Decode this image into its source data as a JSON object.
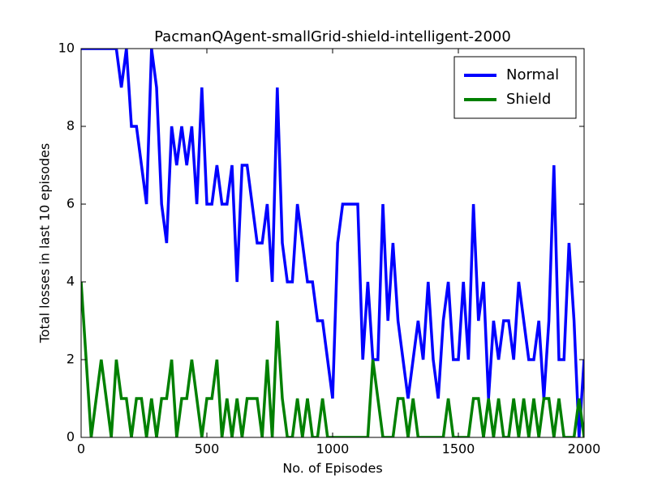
{
  "chart_data": {
    "type": "line",
    "title": "PacmanQAgent-smallGrid-shield-intelligent-2000",
    "x_label": "No. of Episodes",
    "y_label": "Total losses in last 10 episodes",
    "x": [
      0,
      20,
      40,
      60,
      80,
      100,
      120,
      140,
      160,
      180,
      200,
      220,
      240,
      260,
      280,
      300,
      320,
      340,
      360,
      380,
      400,
      420,
      440,
      460,
      480,
      500,
      520,
      540,
      560,
      580,
      600,
      620,
      640,
      660,
      680,
      700,
      720,
      740,
      760,
      780,
      800,
      820,
      840,
      860,
      880,
      900,
      920,
      940,
      960,
      980,
      1000,
      1020,
      1040,
      1060,
      1080,
      1100,
      1120,
      1140,
      1160,
      1180,
      1200,
      1220,
      1240,
      1260,
      1280,
      1300,
      1320,
      1340,
      1360,
      1380,
      1400,
      1420,
      1440,
      1460,
      1480,
      1500,
      1520,
      1540,
      1560,
      1580,
      1600,
      1620,
      1640,
      1660,
      1680,
      1700,
      1720,
      1740,
      1760,
      1780,
      1800,
      1820,
      1840,
      1860,
      1880,
      1900,
      1920,
      1940,
      1960,
      1980,
      2000
    ],
    "series": [
      {
        "name": "Normal",
        "color": "#0000ff",
        "values": [
          10,
          10,
          10,
          10,
          10,
          10,
          10,
          10,
          9,
          10,
          8,
          8,
          7,
          6,
          10,
          9,
          6,
          5,
          8,
          7,
          8,
          7,
          8,
          6,
          9,
          6,
          6,
          7,
          6,
          6,
          7,
          4,
          7,
          7,
          6,
          5,
          5,
          6,
          4,
          9,
          5,
          4,
          4,
          6,
          5,
          4,
          4,
          3,
          3,
          2,
          1,
          5,
          6,
          6,
          6,
          6,
          2,
          4,
          2,
          2,
          6,
          3,
          5,
          3,
          2,
          1,
          2,
          3,
          2,
          4,
          2,
          1,
          3,
          4,
          2,
          2,
          4,
          2,
          6,
          3,
          4,
          1,
          3,
          2,
          3,
          3,
          2,
          4,
          3,
          2,
          2,
          3,
          1,
          3,
          7,
          2,
          2,
          5,
          3,
          0,
          2
        ]
      },
      {
        "name": "Shield",
        "color": "#008000",
        "values": [
          4,
          2,
          0,
          1,
          2,
          1,
          0,
          2,
          1,
          1,
          0,
          1,
          1,
          0,
          1,
          0,
          1,
          1,
          2,
          0,
          1,
          1,
          2,
          1,
          0,
          1,
          1,
          2,
          0,
          1,
          0,
          1,
          0,
          1,
          1,
          1,
          0,
          2,
          0,
          3,
          1,
          0,
          0,
          1,
          0,
          1,
          0,
          0,
          1,
          0,
          0,
          0,
          0,
          0,
          0,
          0,
          0,
          0,
          2,
          1,
          0,
          0,
          0,
          1,
          1,
          0,
          1,
          0,
          0,
          0,
          0,
          0,
          0,
          1,
          0,
          0,
          0,
          0,
          1,
          1,
          0,
          1,
          0,
          1,
          0,
          0,
          1,
          0,
          1,
          0,
          1,
          0,
          1,
          1,
          0,
          1,
          0,
          0,
          0,
          1,
          0
        ]
      }
    ],
    "xlim": [
      0,
      2000
    ],
    "xticks": [
      0,
      500,
      1000,
      1500,
      2000
    ],
    "ylim": [
      0,
      10
    ],
    "yticks": [
      0,
      2,
      4,
      6,
      8,
      10
    ],
    "grid": false,
    "legend": "upper right"
  }
}
